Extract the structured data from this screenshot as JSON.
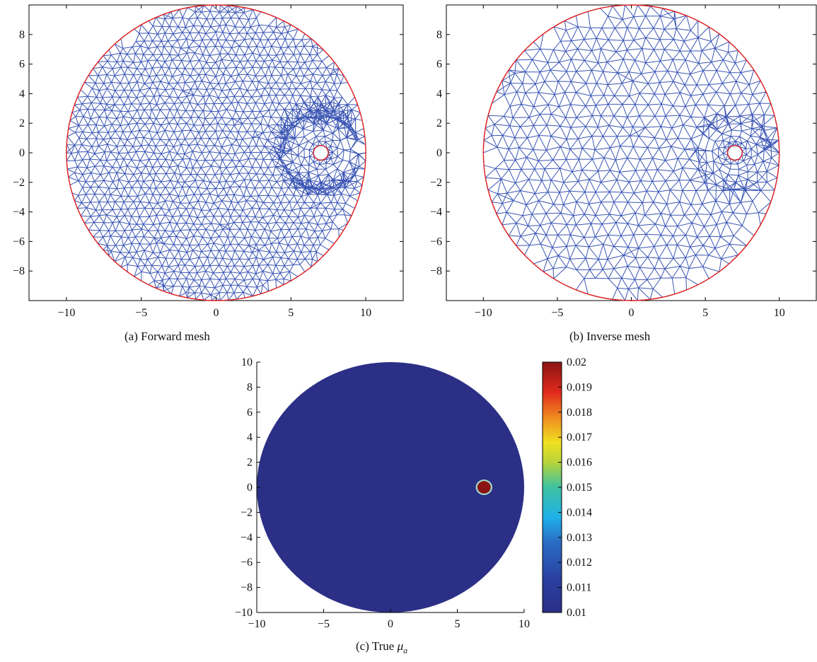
{
  "chart_data": [
    {
      "type": "mesh",
      "caption": "(a)  Forward mesh",
      "xlim": [
        -12.5,
        12.5
      ],
      "ylim": [
        -10,
        10
      ],
      "x_ticks": [
        -10,
        -5,
        0,
        5,
        10
      ],
      "y_ticks": [
        -8,
        -6,
        -4,
        -2,
        0,
        2,
        4,
        6,
        8
      ],
      "domain": {
        "center": [
          0,
          0
        ],
        "radius": 10
      },
      "inclusion": {
        "center": [
          7,
          0
        ],
        "radius": 0.5
      },
      "mesh_color": "#3a55b4",
      "boundary_color": "#e02020",
      "density": "fine"
    },
    {
      "type": "mesh",
      "caption": "(b)  Inverse mesh",
      "xlim": [
        -12.5,
        12.5
      ],
      "ylim": [
        -10,
        10
      ],
      "x_ticks": [
        -10,
        -5,
        0,
        5,
        10
      ],
      "y_ticks": [
        -8,
        -6,
        -4,
        -2,
        0,
        2,
        4,
        6,
        8
      ],
      "domain": {
        "center": [
          0,
          0
        ],
        "radius": 10
      },
      "inclusion": {
        "center": [
          7,
          0
        ],
        "radius": 0.5
      },
      "mesh_color": "#3a55b4",
      "boundary_color": "#e02020",
      "density": "coarse"
    },
    {
      "type": "heatmap",
      "caption_prefix": "(c)  True ",
      "caption_symbol": "μ",
      "caption_subscript": "a",
      "xlim": [
        -10,
        10
      ],
      "ylim": [
        -10,
        10
      ],
      "x_ticks": [
        -10,
        -5,
        0,
        5,
        10
      ],
      "y_ticks": [
        -10,
        -8,
        -6,
        -4,
        -2,
        0,
        2,
        4,
        6,
        8,
        10
      ],
      "background_value": 0.01,
      "inclusion": {
        "center": [
          7,
          0
        ],
        "radius": 0.5,
        "value": 0.02
      },
      "colorbar": {
        "min": 0.01,
        "max": 0.02,
        "ticks": [
          "0.01",
          "0.011",
          "0.012",
          "0.013",
          "0.014",
          "0.015",
          "0.016",
          "0.017",
          "0.018",
          "0.019",
          "0.02"
        ],
        "colormap": "jet"
      }
    }
  ]
}
